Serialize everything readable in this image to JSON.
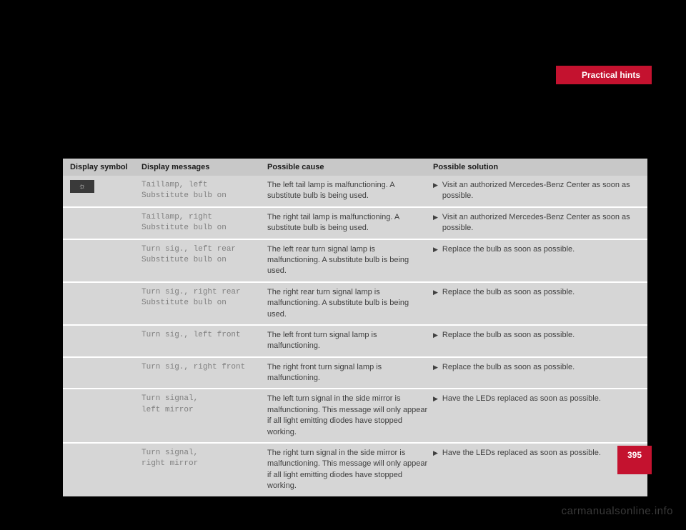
{
  "header": {
    "tab_title": "Practical hints"
  },
  "table": {
    "headers": {
      "symbol": "Display symbol",
      "messages": "Display messages",
      "cause": "Possible cause",
      "solution": "Possible solution"
    },
    "symbol_glyph": "☼",
    "rows": [
      {
        "message": "Taillamp, left\nSubstitute bulb on",
        "cause": "The left tail lamp is malfunctioning. A substitute bulb is being used.",
        "solution": "Visit an authorized Mercedes-Benz Center as soon as possible."
      },
      {
        "message": "Taillamp, right\nSubstitute bulb on",
        "cause": "The right tail lamp is malfunctioning. A substitute bulb is being used.",
        "solution": "Visit an authorized Mercedes-Benz Center as soon as possible."
      },
      {
        "message": "Turn sig., left rear\nSubstitute bulb on",
        "cause": "The left rear turn signal lamp is malfunctioning. A substitute bulb is being used.",
        "solution": "Replace the bulb as soon as possible."
      },
      {
        "message": "Turn sig., right rear\nSubstitute bulb on",
        "cause": "The right rear turn signal lamp is malfunctioning. A substitute bulb is being used.",
        "solution": "Replace the bulb as soon as possible."
      },
      {
        "message": "Turn sig., left front",
        "cause": "The left front turn signal lamp is malfunctioning.",
        "solution": "Replace the bulb as soon as possible."
      },
      {
        "message": "Turn sig., right front",
        "cause": "The right front turn signal lamp is malfunctioning.",
        "solution": "Replace the bulb as soon as possible."
      },
      {
        "message": "Turn signal,\nleft mirror",
        "cause": "The left turn signal in the side mirror is malfunctioning. This message will only appear if all light emitting diodes have stopped working.",
        "solution": "Have the LEDs replaced as soon as possible."
      },
      {
        "message": "Turn signal,\nright mirror",
        "cause": "The right turn signal in the side mirror is malfunctioning. This message will only appear if all light emitting diodes have stopped working.",
        "solution": "Have the LEDs replaced as soon as possible."
      }
    ]
  },
  "page_number": "395",
  "watermark": "carmanualsonline.info",
  "colors": {
    "background": "#000000",
    "accent": "#c4122f",
    "table_bg": "#d6d6d6",
    "header_bg": "#c8c8c8"
  }
}
